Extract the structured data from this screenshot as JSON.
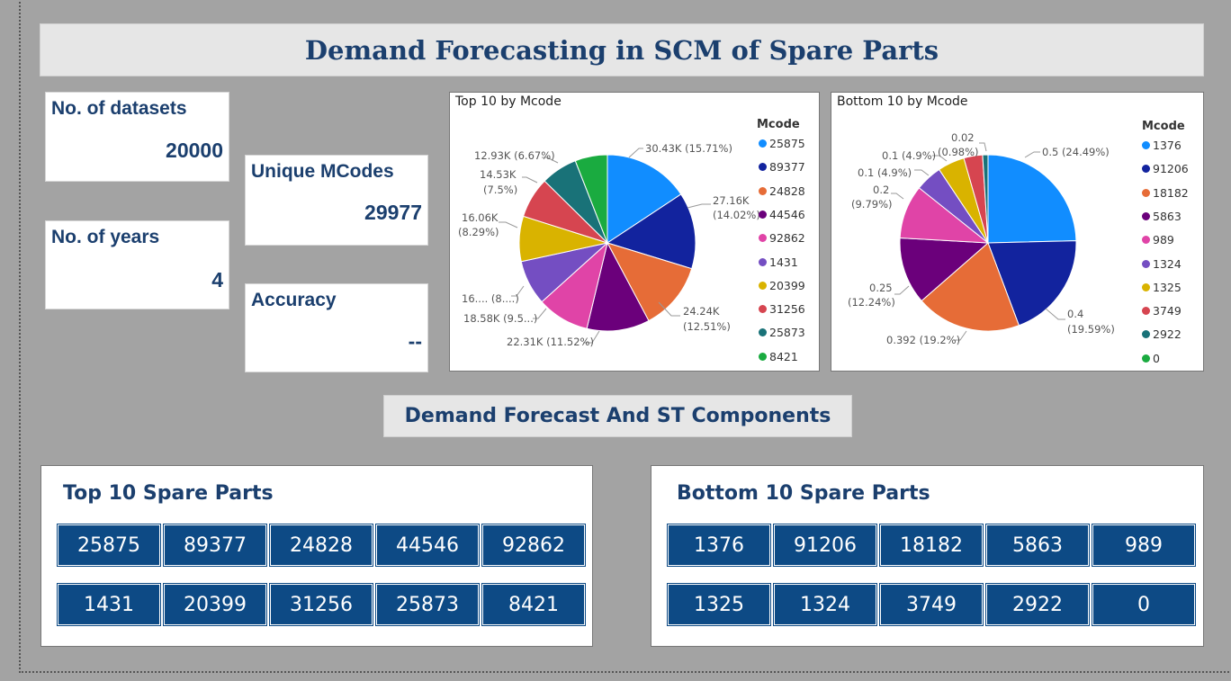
{
  "header": {
    "title": "Demand Forecasting in SCM of Spare Parts"
  },
  "kpis": {
    "datasets": {
      "label": "No. of datasets",
      "value": "20000"
    },
    "years": {
      "label": "No. of years",
      "value": "4"
    },
    "unique": {
      "label": "Unique MCodes",
      "value": "29977"
    },
    "accuracy": {
      "label": "Accuracy",
      "value": "--"
    }
  },
  "section": {
    "title": "Demand Forecast And ST Components"
  },
  "top_panel": {
    "title": "Top 10 Spare Parts",
    "codes": [
      "25875",
      "89377",
      "24828",
      "44546",
      "92862",
      "1431",
      "20399",
      "31256",
      "25873",
      "8421"
    ]
  },
  "bottom_panel": {
    "title": "Bottom 10 Spare Parts",
    "codes": [
      "1376",
      "91206",
      "18182",
      "5863",
      "989",
      "1325",
      "1324",
      "3749",
      "2922",
      "0"
    ]
  },
  "pie_labels_top": {
    "l1": "30.43K (15.71%)",
    "l2a": "27.16K",
    "l2b": "(14.02%)",
    "l3a": "24.24K",
    "l3b": "(12.51%)",
    "l4": "22.31K (11.52%)",
    "l5": "18.58K (9.5...)",
    "l6": "16.... (8....)",
    "l7a": "16.06K",
    "l7b": "(8.29%)",
    "l8a": "14.53K",
    "l8b": "(7.5%)",
    "l9": "12.93K (6.67%)"
  },
  "pie_labels_bottom": {
    "l1": "0.5 (24.49%)",
    "l2a": "0.4",
    "l2b": "(19.59%)",
    "l3": "0.392 (19.2%)",
    "l4a": "0.25",
    "l4b": "(12.24%)",
    "l5a": "0.2",
    "l5b": "(9.79%)",
    "l6": "0.1 (4.9%)",
    "l7": "0.1 (4.9%)",
    "l8a": "0.02",
    "l8b": "(0.98%)"
  },
  "colors": [
    "#118dff",
    "#12239e",
    "#e66c37",
    "#6b007b",
    "#e044a7",
    "#744ec2",
    "#d9b300",
    "#d64550",
    "#197278",
    "#1aab40"
  ],
  "chart_data": [
    {
      "type": "pie",
      "title": "Top 10 by Mcode",
      "legend_title": "Mcode",
      "legend_placement": "right",
      "categories": [
        "25875",
        "89377",
        "24828",
        "44546",
        "92862",
        "1431",
        "20399",
        "31256",
        "25873",
        "8421"
      ],
      "values": [
        30430,
        27160,
        24240,
        22310,
        18580,
        16000,
        16060,
        14530,
        12930,
        11500
      ]
    },
    {
      "type": "pie",
      "title": "Bottom 10 by Mcode",
      "legend_title": "Mcode",
      "legend_placement": "right",
      "categories": [
        "1376",
        "91206",
        "18182",
        "5863",
        "989",
        "1324",
        "1325",
        "3749",
        "2922",
        "0"
      ],
      "values": [
        0.5,
        0.4,
        0.392,
        0.25,
        0.2,
        0.1,
        0.1,
        0.07,
        0.02,
        0
      ]
    }
  ]
}
